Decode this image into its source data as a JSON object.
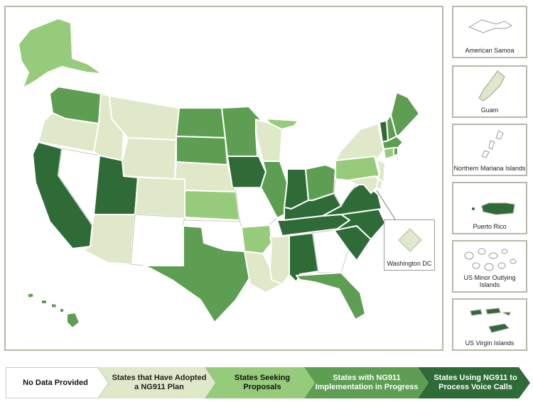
{
  "colors": {
    "no_data": "#ffffff",
    "adopted": "#dfe8c8",
    "proposals": "#97cb7c",
    "implementation": "#5e9e52",
    "voice_calls": "#2f6b37",
    "border": "#b9b8a8"
  },
  "legend": {
    "items": [
      {
        "label": "No Data Provided",
        "category": "no_data"
      },
      {
        "label": "States that Have Adopted a NG911 Plan",
        "category": "adopted"
      },
      {
        "label": "States Seeking Proposals",
        "category": "proposals"
      },
      {
        "label": "States with NG911 Implementation in Progress",
        "category": "implementation"
      },
      {
        "label": "States Using NG911 to Process Voice Calls",
        "category": "voice_calls"
      }
    ]
  },
  "territories": [
    {
      "label": "American Samoa",
      "category": "no_data",
      "icon": "american-samoa-shape"
    },
    {
      "label": "Guam",
      "category": "adopted",
      "icon": "guam-shape"
    },
    {
      "label": "Northern Mariana Islands",
      "category": "no_data",
      "icon": "northern-mariana-shape"
    },
    {
      "label": "Puerto Rico",
      "category": "voice_calls",
      "icon": "puerto-rico-shape"
    },
    {
      "label": "US Minor Outlying Islands",
      "category": "no_data",
      "icon": "minor-islands-shape"
    },
    {
      "label": "US Virgin Islands",
      "category": "voice_calls",
      "icon": "virgin-islands-shape"
    }
  ],
  "dc": {
    "label": "Washington DC",
    "category": "adopted"
  },
  "states": {
    "WA": "implementation",
    "OR": "adopted",
    "CA": "voice_calls",
    "NV": "no_data",
    "ID": "adopted",
    "MT": "adopted",
    "WY": "adopted",
    "UT": "voice_calls",
    "AZ": "adopted",
    "CO": "adopted",
    "NM": "no_data",
    "ND": "implementation",
    "SD": "implementation",
    "NE": "adopted",
    "KS": "proposals",
    "OK": "no_data",
    "TX": "implementation",
    "MN": "implementation",
    "IA": "voice_calls",
    "MO": "no_data",
    "AR": "proposals",
    "LA": "adopted",
    "WI": "adopted",
    "IL": "implementation",
    "MI": "proposals",
    "IN": "voice_calls",
    "OH": "implementation",
    "KY": "voice_calls",
    "TN": "voice_calls",
    "MS": "adopted",
    "AL": "voice_calls",
    "GA": "no_data",
    "FL": "implementation",
    "SC": "voice_calls",
    "NC": "voice_calls",
    "VA": "voice_calls",
    "WV": "no_data",
    "PA": "proposals",
    "NY": "adopted",
    "VT": "voice_calls",
    "NH": "implementation",
    "ME": "implementation",
    "MA": "implementation",
    "NJ": "adopted",
    "CT": "proposals",
    "RI": "implementation",
    "DE": "adopted",
    "MD": "adopted",
    "AK": "proposals",
    "HI": "implementation"
  }
}
